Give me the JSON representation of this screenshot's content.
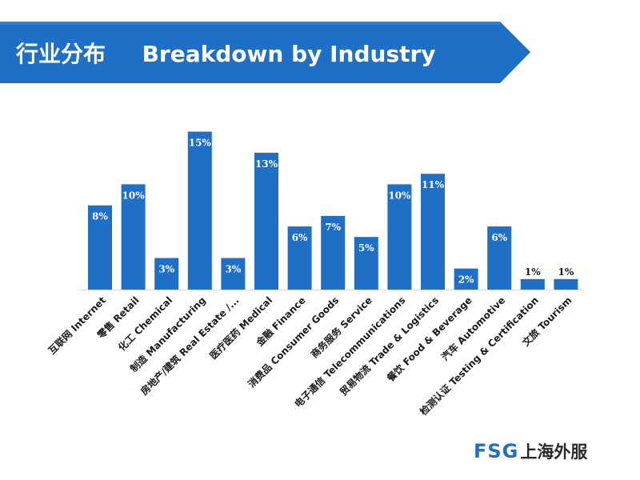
{
  "header": {
    "title_cn": "行业分布",
    "title_en": "Breakdown by Industry",
    "band_color": "#1e6fc6",
    "band_top_color": "#2c82dc"
  },
  "logo": {
    "text_en": "FSG",
    "text_cn": "上海外服",
    "color_en": "#1e6fc6",
    "color_cn": "#2a2a2a"
  },
  "chart_data": {
    "type": "bar",
    "title": "",
    "xlabel": "",
    "ylabel": "",
    "ylim": [
      0,
      15.5
    ],
    "bar_color": "#1e6fc6",
    "grid": false,
    "categories": [
      "互联网 Internet",
      "零售 Retail",
      "化工 Chemical",
      "制造 Manufacturing",
      "房地产/建筑 Real Estate /...",
      "医疗医药 Medical",
      "金融 Finance",
      "消费品 Consumer Goods",
      "商务服务 Service",
      "电子通信 Telecommunications",
      "贸易物流 Trade & Logistics",
      "餐饮 Food & Beverage",
      "汽车 Automotive",
      "检测认证 Testing & Certification",
      "文旅 Tourism"
    ],
    "values": [
      8,
      10,
      3,
      15,
      3,
      13,
      6,
      7,
      5,
      10,
      11,
      2,
      6,
      1,
      1
    ],
    "data_labels": [
      "8%",
      "10%",
      "3%",
      "15%",
      "3%",
      "13%",
      "6%",
      "7%",
      "5%",
      "10%",
      "11%",
      "2%",
      "6%",
      "1%",
      "1%"
    ]
  }
}
